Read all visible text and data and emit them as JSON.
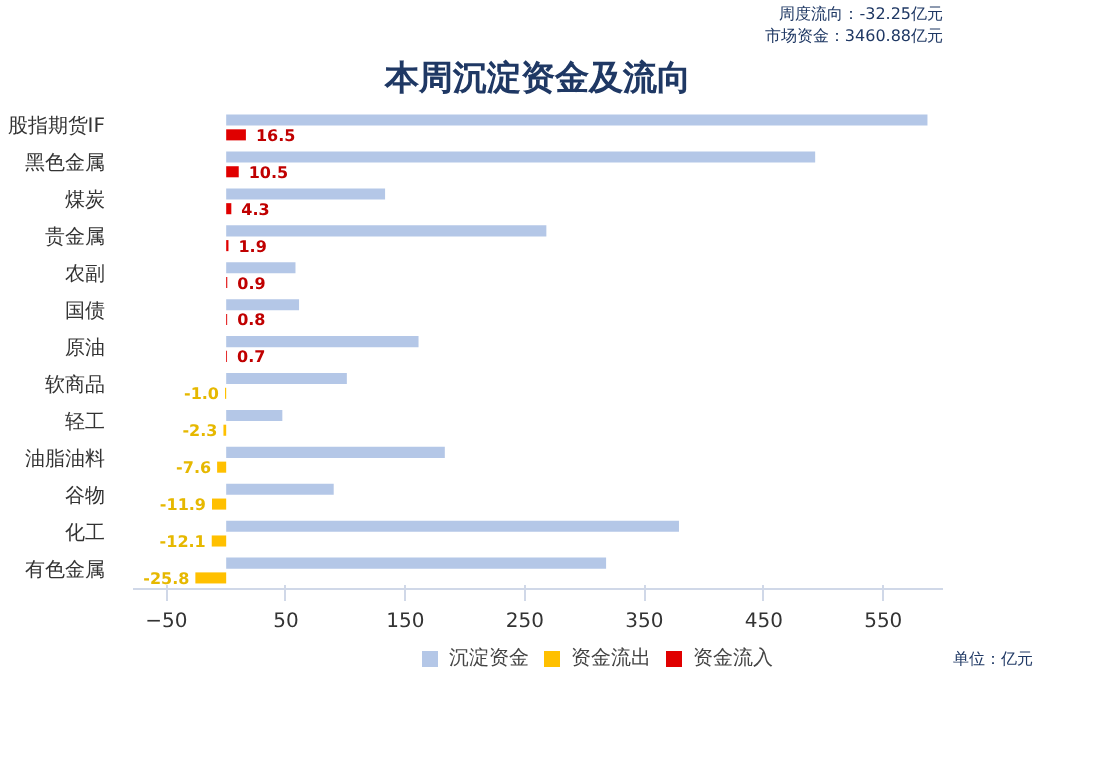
{
  "chart_data": {
    "type": "bar",
    "orientation": "horizontal",
    "title": "本周沉淀资金及流向",
    "annotations": [
      "市场资金：3460.88亿元",
      "周度流向：-32.25亿元",
      "单位：亿元"
    ],
    "categories": [
      "股指期货IF",
      "黑色金属",
      "煤炭",
      "贵金属",
      "农副",
      "国债",
      "原油",
      "软商品",
      "轻工",
      "油脂油料",
      "谷物",
      "化工",
      "有色金属"
    ],
    "series": [
      {
        "name": "沉淀资金",
        "color": "#b4c7e7",
        "values": [
          587,
          493,
          133,
          268,
          58,
          61,
          161,
          101,
          47,
          183,
          90,
          379,
          318
        ]
      },
      {
        "name": "资金流出",
        "color": "#ffc000",
        "values": [
          null,
          null,
          null,
          null,
          null,
          null,
          null,
          -1.0,
          -2.3,
          -7.6,
          -11.9,
          -12.1,
          -25.8
        ],
        "value_labels": [
          null,
          null,
          null,
          null,
          null,
          null,
          null,
          "-1.0",
          "-2.3",
          "-7.6",
          "-11.9",
          "-12.1",
          "-25.8"
        ]
      },
      {
        "name": "资金流入",
        "color": "#e00000",
        "values": [
          16.5,
          10.5,
          4.3,
          1.9,
          0.9,
          0.8,
          0.7,
          null,
          null,
          null,
          null,
          null,
          null
        ],
        "value_labels": [
          "16.5",
          "10.5",
          "4.3",
          "1.9",
          "0.9",
          "0.8",
          "0.7",
          null,
          null,
          null,
          null,
          null,
          null
        ]
      }
    ],
    "xlim": [
      -78,
      600
    ],
    "xticks": [
      -50,
      50,
      150,
      250,
      350,
      450,
      550
    ],
    "grid": false,
    "legend": "bottom"
  }
}
